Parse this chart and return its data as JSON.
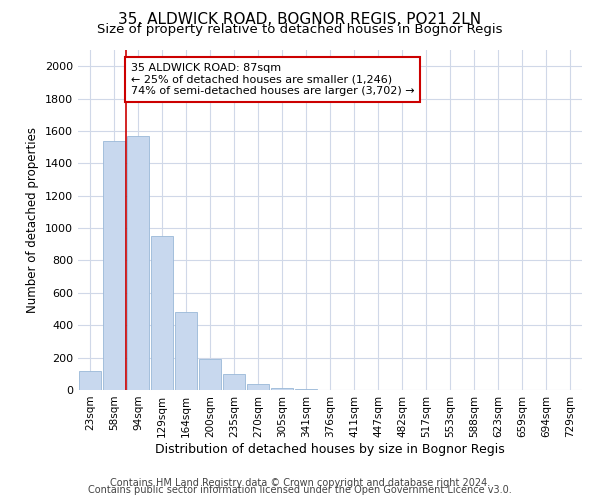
{
  "title": "35, ALDWICK ROAD, BOGNOR REGIS, PO21 2LN",
  "subtitle": "Size of property relative to detached houses in Bognor Regis",
  "xlabel": "Distribution of detached houses by size in Bognor Regis",
  "ylabel": "Number of detached properties",
  "footnote1": "Contains HM Land Registry data © Crown copyright and database right 2024.",
  "footnote2": "Contains public sector information licensed under the Open Government Licence v3.0.",
  "categories": [
    "23sqm",
    "58sqm",
    "94sqm",
    "129sqm",
    "164sqm",
    "200sqm",
    "235sqm",
    "270sqm",
    "305sqm",
    "341sqm",
    "376sqm",
    "411sqm",
    "447sqm",
    "482sqm",
    "517sqm",
    "553sqm",
    "588sqm",
    "623sqm",
    "659sqm",
    "694sqm",
    "729sqm"
  ],
  "values": [
    120,
    1540,
    1570,
    950,
    480,
    190,
    100,
    35,
    10,
    5,
    3,
    2,
    1,
    1,
    1,
    1,
    1,
    1,
    0,
    0,
    0
  ],
  "bar_color": "#c8d8ee",
  "bar_edge_color": "#9ab8d8",
  "annotation_box_text": "35 ALDWICK ROAD: 87sqm\n← 25% of detached houses are smaller (1,246)\n74% of semi-detached houses are larger (3,702) →",
  "annotation_box_color": "#ffffff",
  "annotation_box_edge_color": "#cc0000",
  "vline_x": 1.5,
  "vline_color": "#cc0000",
  "ylim": [
    0,
    2100
  ],
  "yticks": [
    0,
    200,
    400,
    600,
    800,
    1000,
    1200,
    1400,
    1600,
    1800,
    2000
  ],
  "title_fontsize": 11,
  "subtitle_fontsize": 9.5,
  "xlabel_fontsize": 9,
  "ylabel_fontsize": 8.5,
  "xtick_fontsize": 7.5,
  "ytick_fontsize": 8,
  "annotation_fontsize": 8,
  "footnote_fontsize": 7,
  "grid_color": "#d0d8e8",
  "background_color": "#ffffff"
}
